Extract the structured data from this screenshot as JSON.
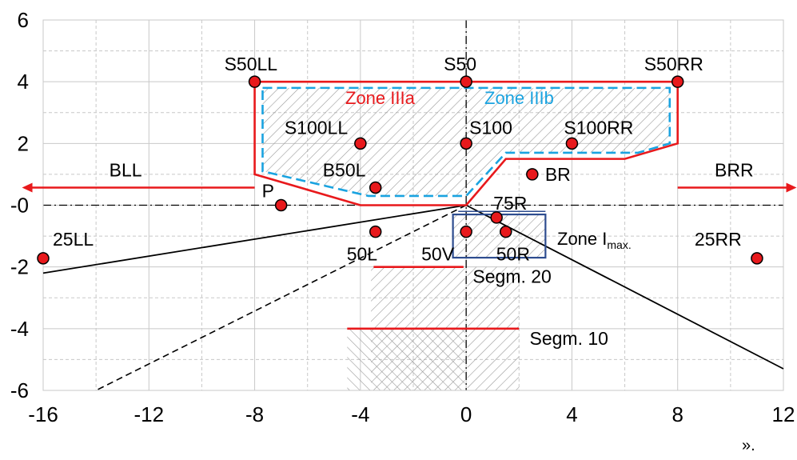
{
  "chart_data": {
    "type": "scatter",
    "xlim": [
      -16,
      12
    ],
    "ylim": [
      -6,
      6
    ],
    "x_ticks": [
      "-16",
      "-12",
      "-8",
      "-4",
      "0",
      "4",
      "8",
      "12"
    ],
    "y_ticks": [
      "6",
      "4",
      "2",
      "-0",
      "-2",
      "-4",
      "-6"
    ],
    "grid": true,
    "points": [
      {
        "label": "S50LL",
        "x": -8,
        "y": 4
      },
      {
        "label": "S50",
        "x": 0,
        "y": 4
      },
      {
        "label": "S50RR",
        "x": 8,
        "y": 4
      },
      {
        "label": "S100LL",
        "x": -4,
        "y": 2
      },
      {
        "label": "S100",
        "x": 0,
        "y": 2
      },
      {
        "label": "S100RR",
        "x": 4,
        "y": 2
      },
      {
        "label": "B50L",
        "x": -3.43,
        "y": 0.57
      },
      {
        "label": "BR",
        "x": 2.5,
        "y": 1
      },
      {
        "label": "P",
        "x": -7,
        "y": 0
      },
      {
        "label": "75R",
        "x": 1.15,
        "y": -0.4
      },
      {
        "label": "50L",
        "x": -3.43,
        "y": -0.86
      },
      {
        "label": "50V",
        "x": 0,
        "y": -0.86
      },
      {
        "label": "50R",
        "x": 1.5,
        "y": -0.86
      },
      {
        "label": "25LL",
        "x": -16,
        "y": -1.72
      },
      {
        "label": "25RR",
        "x": 11,
        "y": -1.72
      }
    ],
    "arrows": [
      {
        "label": "BLL",
        "from_x": -8,
        "to_x": -16.8,
        "y": 0.57
      },
      {
        "label": "BRR",
        "from_x": 8,
        "to_x": 12.5,
        "y": 0.57
      }
    ],
    "segments": [
      {
        "label": "Segm. 20",
        "x1": -3.5,
        "x2": -0.1,
        "y": -2
      },
      {
        "label": "Segm. 10",
        "x1": -4.5,
        "x2": 2,
        "y": -4
      }
    ],
    "zones": [
      {
        "label": "Zone IIIa",
        "color": "#e8191c"
      },
      {
        "label": "Zone IIIb",
        "color": "#1aa3e0"
      },
      {
        "label": "Zone I",
        "sub": "max.",
        "color": "#2e4d8f",
        "x1": -0.5,
        "x2": 3,
        "y1": -0.3,
        "y2": -1.7
      }
    ]
  },
  "footer_mark": "»."
}
